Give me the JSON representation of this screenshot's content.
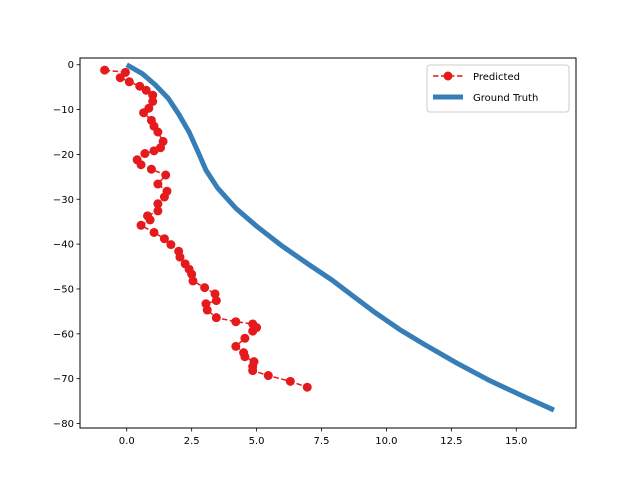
{
  "chart_data": {
    "type": "line",
    "title": "",
    "xlabel": "",
    "ylabel": "",
    "xlim": [
      -1.8,
      17.3
    ],
    "ylim": [
      -81.0,
      1.5
    ],
    "x_ticks": [
      0.0,
      2.5,
      5.0,
      7.5,
      10.0,
      12.5,
      15.0
    ],
    "x_tick_labels": [
      "0.0",
      "2.5",
      "5.0",
      "7.5",
      "10.0",
      "12.5",
      "15.0"
    ],
    "y_ticks": [
      0,
      -10,
      -20,
      -30,
      -40,
      -50,
      -60,
      -70,
      -80
    ],
    "y_tick_labels": [
      "0",
      "−10",
      "−20",
      "−30",
      "−40",
      "−50",
      "−60",
      "−70",
      "−80"
    ],
    "grid": false,
    "legend_position": "top-right",
    "series": [
      {
        "name": "Predicted",
        "style": "dashed-marker",
        "color": "#e41a1c",
        "points": [
          [
            -0.85,
            -1.2
          ],
          [
            -0.05,
            -1.7
          ],
          [
            -0.25,
            -2.9
          ],
          [
            0.1,
            -3.8
          ],
          [
            0.5,
            -4.8
          ],
          [
            0.75,
            -5.7
          ],
          [
            1.0,
            -6.8
          ],
          [
            1.0,
            -8.2
          ],
          [
            0.85,
            -9.7
          ],
          [
            0.65,
            -10.7
          ],
          [
            0.95,
            -12.4
          ],
          [
            1.05,
            -13.7
          ],
          [
            1.2,
            -15.0
          ],
          [
            1.4,
            -17.1
          ],
          [
            1.3,
            -18.5
          ],
          [
            1.05,
            -19.2
          ],
          [
            0.7,
            -19.8
          ],
          [
            0.4,
            -21.2
          ],
          [
            0.55,
            -22.3
          ],
          [
            0.95,
            -23.3
          ],
          [
            1.5,
            -24.6
          ],
          [
            1.2,
            -26.6
          ],
          [
            1.55,
            -28.2
          ],
          [
            1.45,
            -29.5
          ],
          [
            1.2,
            -31.0
          ],
          [
            1.2,
            -32.6
          ],
          [
            0.8,
            -33.7
          ],
          [
            0.9,
            -34.6
          ],
          [
            0.55,
            -35.8
          ],
          [
            1.05,
            -37.4
          ],
          [
            1.45,
            -38.8
          ],
          [
            1.7,
            -40.1
          ],
          [
            2.0,
            -41.6
          ],
          [
            2.05,
            -42.9
          ],
          [
            2.25,
            -44.4
          ],
          [
            2.4,
            -45.6
          ],
          [
            2.5,
            -46.7
          ],
          [
            2.55,
            -48.2
          ],
          [
            3.0,
            -49.7
          ],
          [
            3.4,
            -51.1
          ],
          [
            3.45,
            -52.6
          ],
          [
            3.05,
            -53.3
          ],
          [
            3.1,
            -54.7
          ],
          [
            3.45,
            -56.4
          ],
          [
            4.2,
            -57.3
          ],
          [
            4.85,
            -57.8
          ],
          [
            5.0,
            -58.6
          ],
          [
            4.85,
            -59.4
          ],
          [
            4.55,
            -61.0
          ],
          [
            4.2,
            -62.8
          ],
          [
            4.5,
            -64.2
          ],
          [
            4.55,
            -65.1
          ],
          [
            4.9,
            -66.2
          ],
          [
            4.85,
            -67.3
          ],
          [
            4.85,
            -68.2
          ],
          [
            5.45,
            -69.3
          ],
          [
            6.3,
            -70.6
          ],
          [
            6.95,
            -71.9
          ]
        ]
      },
      {
        "name": "Ground Truth",
        "style": "thick-line",
        "color": "#377eb8",
        "points": [
          [
            0.0,
            0.0
          ],
          [
            0.6,
            -2.0
          ],
          [
            1.1,
            -4.5
          ],
          [
            1.6,
            -7.5
          ],
          [
            2.0,
            -11.0
          ],
          [
            2.4,
            -15.0
          ],
          [
            2.75,
            -19.5
          ],
          [
            3.05,
            -23.5
          ],
          [
            3.5,
            -27.5
          ],
          [
            4.2,
            -32.0
          ],
          [
            5.0,
            -36.0
          ],
          [
            6.0,
            -40.5
          ],
          [
            7.0,
            -44.5
          ],
          [
            7.9,
            -48.0
          ],
          [
            8.7,
            -51.5
          ],
          [
            9.5,
            -55.0
          ],
          [
            10.5,
            -59.0
          ],
          [
            11.5,
            -62.5
          ],
          [
            12.7,
            -66.5
          ],
          [
            14.0,
            -70.5
          ],
          [
            15.3,
            -74.0
          ],
          [
            16.45,
            -77.0
          ]
        ]
      }
    ]
  }
}
